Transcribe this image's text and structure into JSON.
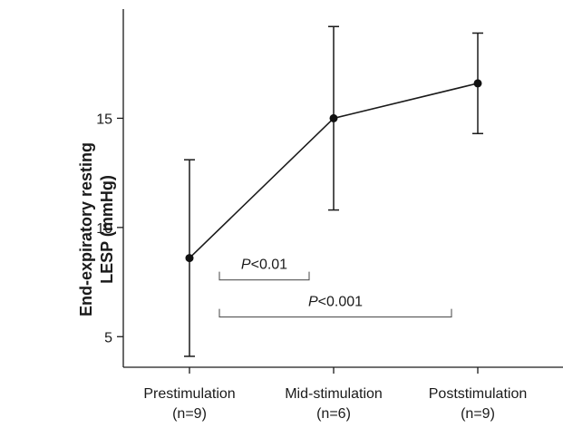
{
  "chart_data": {
    "type": "line",
    "title": "",
    "ylabel_lines": [
      "End-expiratory resting",
      "LESP (mmHg)"
    ],
    "xlabel": "",
    "categories": [
      {
        "name": "Prestimulation",
        "n": "(n=9)"
      },
      {
        "name": "Mid-stimulation",
        "n": "(n=6)"
      },
      {
        "name": "Poststimulation",
        "n": "(n=9)"
      }
    ],
    "series": [
      {
        "values": [
          8.6,
          15.0,
          16.6
        ],
        "err_low": [
          4.1,
          10.8,
          14.3
        ],
        "err_high": [
          13.1,
          19.2,
          18.9
        ]
      }
    ],
    "ylim": [
      3.6,
      20.0
    ],
    "yticks": [
      5,
      10,
      15
    ],
    "grid": false,
    "annotations": [
      {
        "from": 0,
        "to": 1,
        "p": "P",
        "text": "<0.01",
        "y": 7.6
      },
      {
        "from": 0,
        "to": 2,
        "p": "P",
        "text": "<0.001",
        "y": 5.9
      }
    ]
  }
}
